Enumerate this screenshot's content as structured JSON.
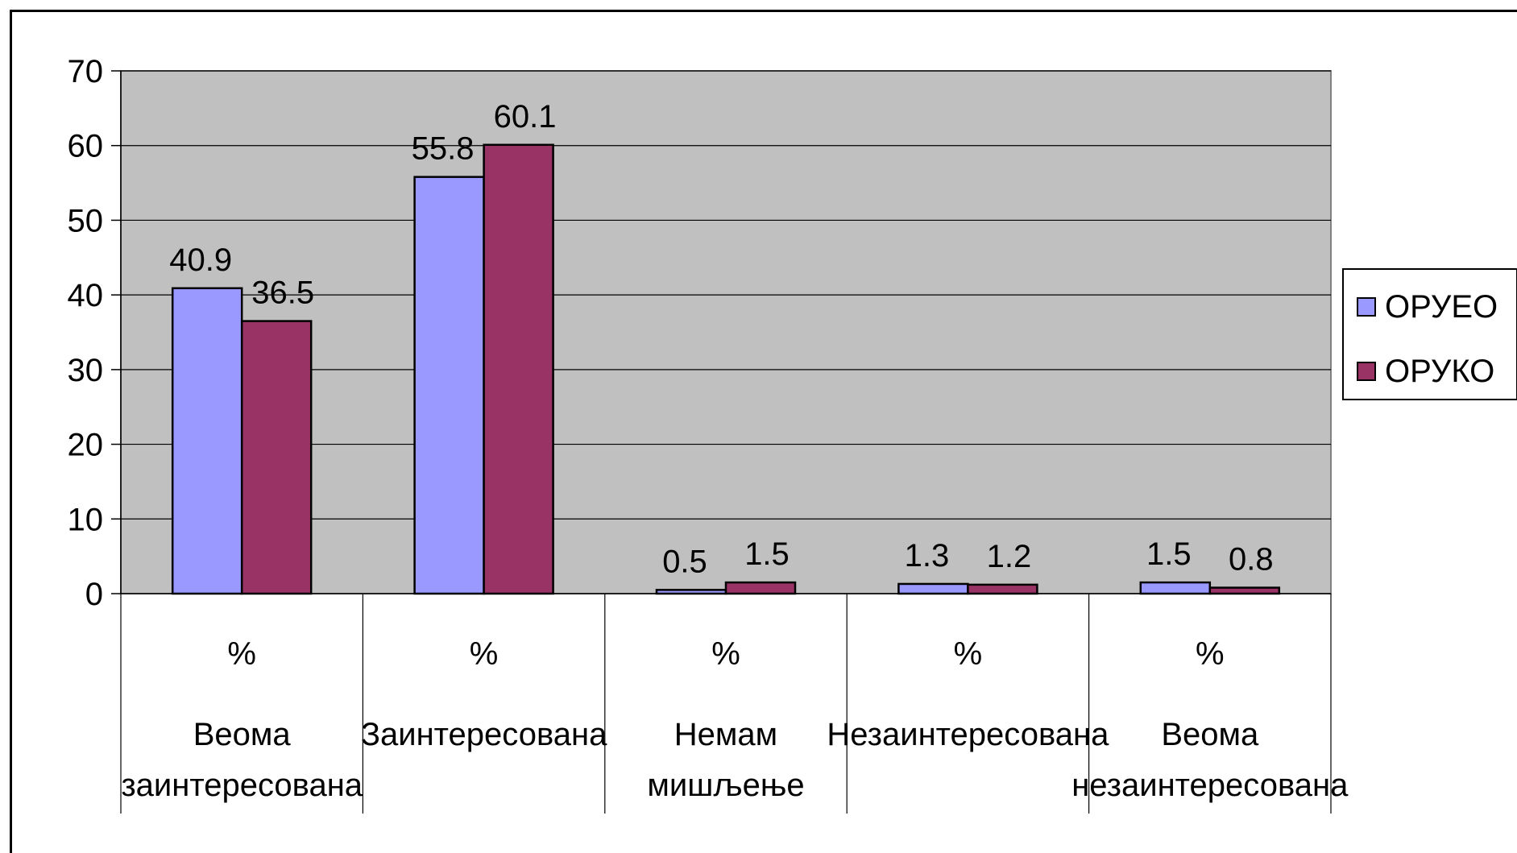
{
  "chart_data": {
    "type": "bar",
    "category_units": [
      "%",
      "%",
      "%",
      "%",
      "%"
    ],
    "categories": [
      [
        "Веома",
        "заинтересована"
      ],
      [
        "Заинтересована"
      ],
      [
        "Немам",
        "мишљење"
      ],
      [
        "Незаинтересована"
      ],
      [
        "Веома",
        "незаинтересована"
      ]
    ],
    "series": [
      {
        "name": "ОРУЕО",
        "color": "#9999ff",
        "values": [
          40.9,
          55.8,
          0.5,
          1.3,
          1.5
        ],
        "labels": [
          "40.9",
          "55.8",
          "0.5",
          "1.3",
          "1.5"
        ]
      },
      {
        "name": "ОРУКО",
        "color": "#993366",
        "values": [
          36.5,
          60.1,
          1.5,
          1.2,
          0.8
        ],
        "labels": [
          "36.5",
          "60.1",
          "1.5",
          "1.2",
          "0.8"
        ]
      }
    ],
    "ylim": [
      0,
      70
    ],
    "yticks": [
      0,
      10,
      20,
      30,
      40,
      50,
      60,
      70
    ],
    "plot_background": "#c0c0c0",
    "grid": true,
    "legend_position": "right"
  }
}
